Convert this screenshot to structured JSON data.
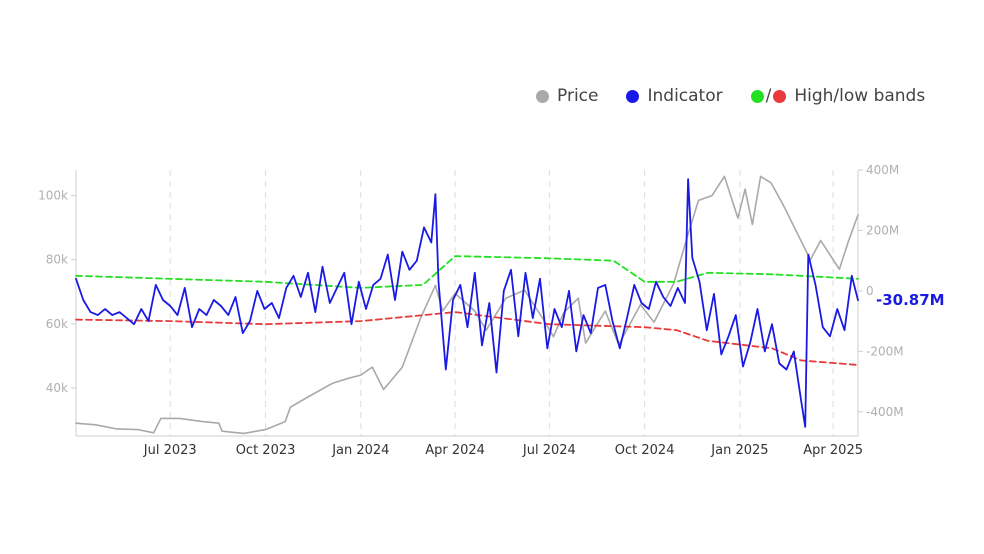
{
  "legend": {
    "price_label": "Price",
    "indicator_label": "Indicator",
    "bands_separator": "/",
    "bands_label": "High/low bands"
  },
  "colors": {
    "price": "#a9a9a9",
    "indicator": "#1a1ae6",
    "high_band": "#22e022",
    "low_band": "#e83a3a",
    "grid": "#dddddd"
  },
  "chart_data": {
    "type": "line",
    "title": "",
    "xlabel": "",
    "ylabel_left": "",
    "ylabel_right": "",
    "x_range": [
      "2023-04-01",
      "2025-04-25"
    ],
    "x_ticks": [
      {
        "date": "2023-07-01",
        "label": "Jul 2023"
      },
      {
        "date": "2023-10-01",
        "label": "Oct 2023"
      },
      {
        "date": "2024-01-01",
        "label": "Jan 2024"
      },
      {
        "date": "2024-04-01",
        "label": "Apr 2024"
      },
      {
        "date": "2024-07-01",
        "label": "Jul 2024"
      },
      {
        "date": "2024-10-01",
        "label": "Oct 2024"
      },
      {
        "date": "2025-01-01",
        "label": "Jan 2025"
      },
      {
        "date": "2025-04-01",
        "label": "Apr 2025"
      }
    ],
    "left_axis": {
      "range": [
        25000,
        108000
      ],
      "ticks": [
        {
          "value": 40000,
          "label": "40k"
        },
        {
          "value": 60000,
          "label": "60k"
        },
        {
          "value": 80000,
          "label": "80k"
        },
        {
          "value": 100000,
          "label": "100k"
        }
      ]
    },
    "right_axis": {
      "range": [
        -480,
        400
      ],
      "unit": "M",
      "ticks": [
        {
          "value": 400,
          "label": "400M"
        },
        {
          "value": 200,
          "label": "200M"
        },
        {
          "value": 0,
          "label": "0"
        },
        {
          "value": -200,
          "label": "-200M"
        },
        {
          "value": -400,
          "label": "-400M"
        }
      ]
    },
    "grid": {
      "vertical": true,
      "horizontal": false,
      "style": "dashed"
    },
    "legend_position": "top-right",
    "last_value_label": "-30.87M",
    "series": [
      {
        "name": "Price",
        "axis": "left",
        "points": [
          [
            "2023-04-01",
            29000
          ],
          [
            "2023-04-20",
            28500
          ],
          [
            "2023-05-10",
            27200
          ],
          [
            "2023-05-31",
            27000
          ],
          [
            "2023-06-15",
            26000
          ],
          [
            "2023-06-22",
            30500
          ],
          [
            "2023-07-10",
            30500
          ],
          [
            "2023-08-01",
            29500
          ],
          [
            "2023-08-17",
            29000
          ],
          [
            "2023-08-20",
            26500
          ],
          [
            "2023-09-10",
            25800
          ],
          [
            "2023-10-01",
            27000
          ],
          [
            "2023-10-20",
            29500
          ],
          [
            "2023-10-25",
            34000
          ],
          [
            "2023-11-10",
            37000
          ],
          [
            "2023-12-05",
            41500
          ],
          [
            "2023-12-20",
            43000
          ],
          [
            "2024-01-01",
            44000
          ],
          [
            "2024-01-12",
            46500
          ],
          [
            "2024-01-23",
            39500
          ],
          [
            "2024-02-10",
            46500
          ],
          [
            "2024-02-28",
            62000
          ],
          [
            "2024-03-13",
            72000
          ],
          [
            "2024-03-20",
            64000
          ],
          [
            "2024-04-01",
            69500
          ],
          [
            "2024-04-20",
            64000
          ],
          [
            "2024-05-01",
            58000
          ],
          [
            "2024-05-20",
            68000
          ],
          [
            "2024-06-07",
            70500
          ],
          [
            "2024-06-25",
            61500
          ],
          [
            "2024-07-05",
            56000
          ],
          [
            "2024-07-15",
            63500
          ],
          [
            "2024-07-29",
            68000
          ],
          [
            "2024-08-05",
            54000
          ],
          [
            "2024-08-24",
            64000
          ],
          [
            "2024-09-06",
            53500
          ],
          [
            "2024-09-27",
            66000
          ],
          [
            "2024-10-10",
            60500
          ],
          [
            "2024-10-29",
            72500
          ],
          [
            "2024-11-12",
            88000
          ],
          [
            "2024-11-22",
            98500
          ],
          [
            "2024-12-05",
            100000
          ],
          [
            "2024-12-17",
            106000
          ],
          [
            "2024-12-30",
            93000
          ],
          [
            "2025-01-06",
            102000
          ],
          [
            "2025-01-13",
            91000
          ],
          [
            "2025-01-21",
            106000
          ],
          [
            "2025-01-31",
            104000
          ],
          [
            "2025-02-12",
            97000
          ],
          [
            "2025-02-25",
            88500
          ],
          [
            "2025-03-10",
            80000
          ],
          [
            "2025-03-20",
            86000
          ],
          [
            "2025-04-07",
            77000
          ],
          [
            "2025-04-15",
            85000
          ],
          [
            "2025-04-25",
            94000
          ]
        ]
      },
      {
        "name": "Indicator",
        "axis": "right",
        "points": [
          [
            "2023-04-01",
            40
          ],
          [
            "2023-04-08",
            -30
          ],
          [
            "2023-04-15",
            -70
          ],
          [
            "2023-04-22",
            -80
          ],
          [
            "2023-04-29",
            -60
          ],
          [
            "2023-05-06",
            -80
          ],
          [
            "2023-05-13",
            -70
          ],
          [
            "2023-05-20",
            -90
          ],
          [
            "2023-05-27",
            -110
          ],
          [
            "2023-06-03",
            -60
          ],
          [
            "2023-06-10",
            -100
          ],
          [
            "2023-06-17",
            20
          ],
          [
            "2023-06-24",
            -30
          ],
          [
            "2023-07-01",
            -50
          ],
          [
            "2023-07-08",
            -80
          ],
          [
            "2023-07-15",
            10
          ],
          [
            "2023-07-22",
            -120
          ],
          [
            "2023-07-29",
            -60
          ],
          [
            "2023-08-05",
            -80
          ],
          [
            "2023-08-12",
            -30
          ],
          [
            "2023-08-19",
            -50
          ],
          [
            "2023-08-26",
            -80
          ],
          [
            "2023-09-02",
            -20
          ],
          [
            "2023-09-09",
            -140
          ],
          [
            "2023-09-16",
            -100
          ],
          [
            "2023-09-23",
            0
          ],
          [
            "2023-09-30",
            -60
          ],
          [
            "2023-10-07",
            -40
          ],
          [
            "2023-10-14",
            -90
          ],
          [
            "2023-10-21",
            10
          ],
          [
            "2023-10-28",
            50
          ],
          [
            "2023-11-04",
            -20
          ],
          [
            "2023-11-11",
            60
          ],
          [
            "2023-11-18",
            -70
          ],
          [
            "2023-11-25",
            80
          ],
          [
            "2023-12-02",
            -40
          ],
          [
            "2023-12-09",
            10
          ],
          [
            "2023-12-16",
            60
          ],
          [
            "2023-12-23",
            -110
          ],
          [
            "2023-12-30",
            30
          ],
          [
            "2024-01-06",
            -60
          ],
          [
            "2024-01-13",
            20
          ],
          [
            "2024-01-20",
            40
          ],
          [
            "2024-01-27",
            120
          ],
          [
            "2024-02-03",
            -30
          ],
          [
            "2024-02-10",
            130
          ],
          [
            "2024-02-17",
            70
          ],
          [
            "2024-02-24",
            100
          ],
          [
            "2024-03-02",
            210
          ],
          [
            "2024-03-09",
            160
          ],
          [
            "2024-03-13",
            320
          ],
          [
            "2024-03-16",
            30
          ],
          [
            "2024-03-23",
            -260
          ],
          [
            "2024-03-30",
            -30
          ],
          [
            "2024-04-06",
            20
          ],
          [
            "2024-04-13",
            -120
          ],
          [
            "2024-04-20",
            60
          ],
          [
            "2024-04-27",
            -180
          ],
          [
            "2024-05-04",
            -40
          ],
          [
            "2024-05-11",
            -270
          ],
          [
            "2024-05-18",
            0
          ],
          [
            "2024-05-25",
            70
          ],
          [
            "2024-06-01",
            -150
          ],
          [
            "2024-06-08",
            60
          ],
          [
            "2024-06-15",
            -90
          ],
          [
            "2024-06-22",
            40
          ],
          [
            "2024-06-29",
            -190
          ],
          [
            "2024-07-06",
            -60
          ],
          [
            "2024-07-13",
            -120
          ],
          [
            "2024-07-20",
            0
          ],
          [
            "2024-07-27",
            -200
          ],
          [
            "2024-08-03",
            -80
          ],
          [
            "2024-08-10",
            -140
          ],
          [
            "2024-08-17",
            10
          ],
          [
            "2024-08-24",
            20
          ],
          [
            "2024-08-31",
            -100
          ],
          [
            "2024-09-07",
            -190
          ],
          [
            "2024-09-14",
            -90
          ],
          [
            "2024-09-21",
            20
          ],
          [
            "2024-09-28",
            -40
          ],
          [
            "2024-10-05",
            -60
          ],
          [
            "2024-10-12",
            30
          ],
          [
            "2024-10-19",
            -20
          ],
          [
            "2024-10-26",
            -50
          ],
          [
            "2024-11-02",
            10
          ],
          [
            "2024-11-09",
            -40
          ],
          [
            "2024-11-12",
            370
          ],
          [
            "2024-11-16",
            110
          ],
          [
            "2024-11-23",
            30
          ],
          [
            "2024-11-30",
            -130
          ],
          [
            "2024-12-07",
            -10
          ],
          [
            "2024-12-14",
            -210
          ],
          [
            "2024-12-21",
            -150
          ],
          [
            "2024-12-28",
            -80
          ],
          [
            "2025-01-04",
            -250
          ],
          [
            "2025-01-11",
            -170
          ],
          [
            "2025-01-18",
            -60
          ],
          [
            "2025-01-25",
            -200
          ],
          [
            "2025-02-01",
            -110
          ],
          [
            "2025-02-08",
            -240
          ],
          [
            "2025-02-15",
            -260
          ],
          [
            "2025-02-22",
            -200
          ],
          [
            "2025-03-01",
            -360
          ],
          [
            "2025-03-05",
            -450
          ],
          [
            "2025-03-08",
            120
          ],
          [
            "2025-03-15",
            20
          ],
          [
            "2025-03-22",
            -120
          ],
          [
            "2025-03-29",
            -150
          ],
          [
            "2025-04-05",
            -60
          ],
          [
            "2025-04-12",
            -130
          ],
          [
            "2025-04-19",
            50
          ],
          [
            "2025-04-25",
            -30.87
          ]
        ]
      },
      {
        "name": "High band",
        "axis": "right",
        "points": [
          [
            "2023-04-01",
            50
          ],
          [
            "2023-07-01",
            40
          ],
          [
            "2023-10-01",
            30
          ],
          [
            "2024-01-01",
            10
          ],
          [
            "2024-03-01",
            20
          ],
          [
            "2024-04-01",
            115
          ],
          [
            "2024-07-01",
            108
          ],
          [
            "2024-09-01",
            100
          ],
          [
            "2024-10-01",
            30
          ],
          [
            "2024-11-01",
            30
          ],
          [
            "2024-12-01",
            60
          ],
          [
            "2025-02-01",
            55
          ],
          [
            "2025-04-25",
            40
          ]
        ]
      },
      {
        "name": "Low band",
        "axis": "right",
        "points": [
          [
            "2023-04-01",
            -95
          ],
          [
            "2023-07-01",
            -100
          ],
          [
            "2023-10-01",
            -110
          ],
          [
            "2024-01-01",
            -100
          ],
          [
            "2024-04-01",
            -70
          ],
          [
            "2024-07-01",
            -110
          ],
          [
            "2024-10-01",
            -120
          ],
          [
            "2024-11-01",
            -130
          ],
          [
            "2024-12-01",
            -165
          ],
          [
            "2025-02-01",
            -190
          ],
          [
            "2025-03-01",
            -230
          ],
          [
            "2025-04-25",
            -245
          ]
        ]
      }
    ]
  }
}
